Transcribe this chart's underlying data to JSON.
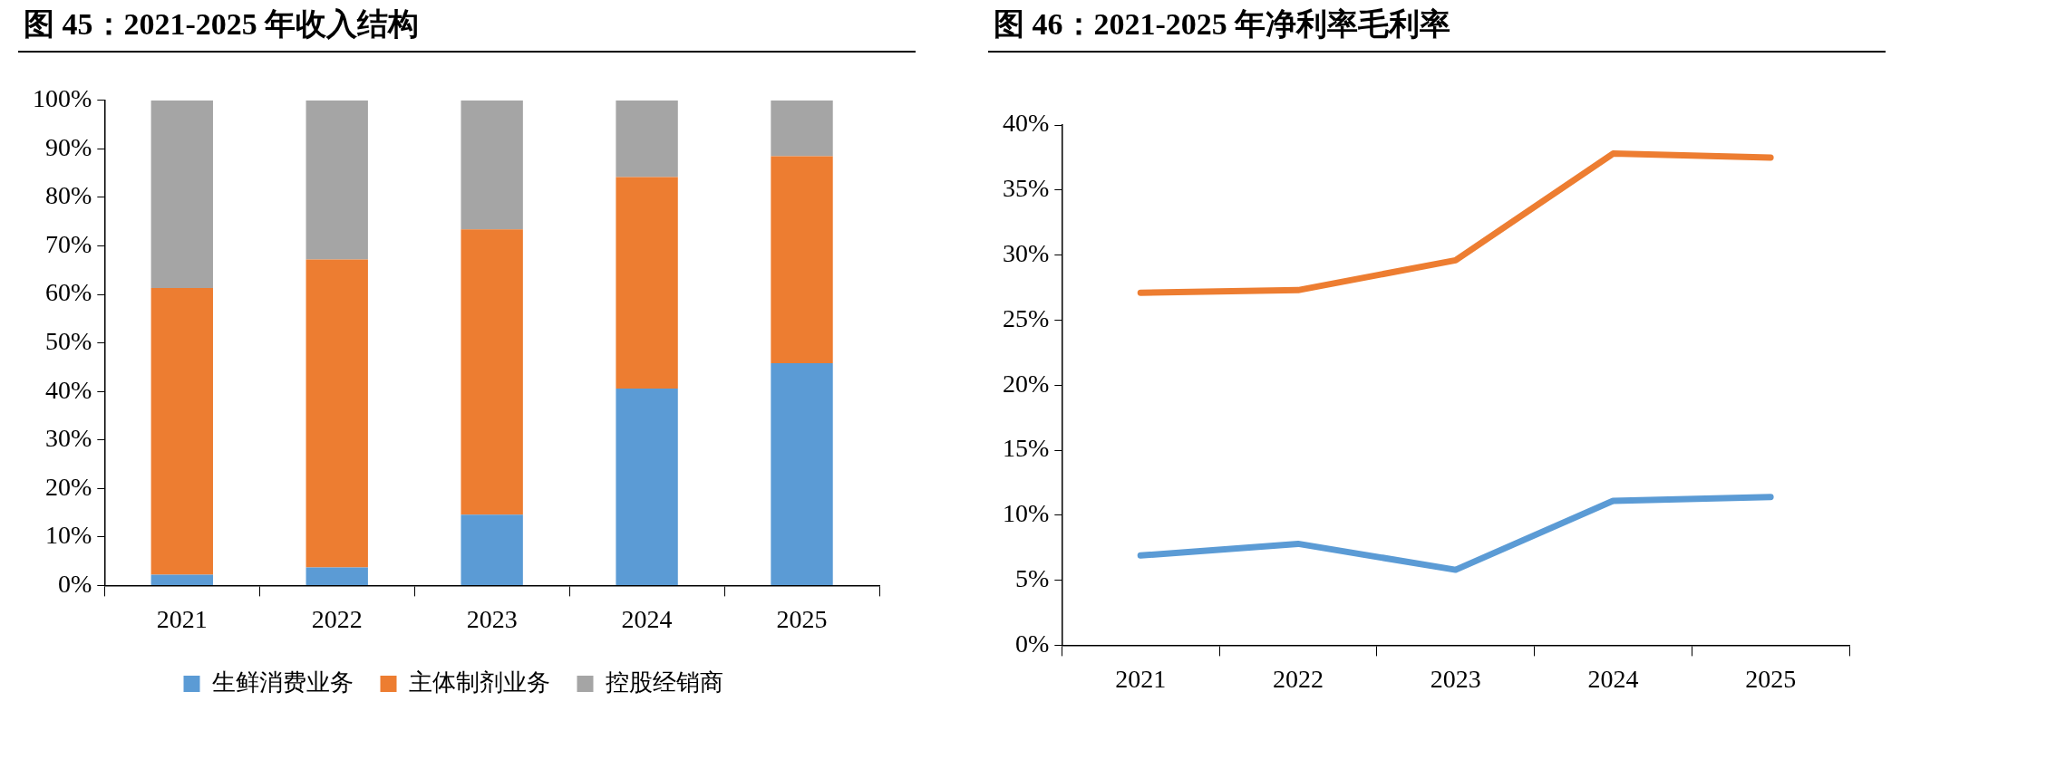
{
  "chart_data": [
    {
      "type": "bar",
      "title": "图 45：2021-2025 年收入结构",
      "categories": [
        "2021",
        "2022",
        "2023",
        "2024",
        "2025"
      ],
      "stacked": true,
      "legend": "bottom",
      "grid": false,
      "series": [
        {
          "name": "生鲜消费业务",
          "color": "#5b9bd5",
          "values": [
            2.2,
            3.7,
            14.6,
            40.6,
            45.8
          ]
        },
        {
          "name": "主体制剂业务",
          "color": "#ed7d31",
          "values": [
            59.1,
            63.5,
            58.8,
            43.6,
            42.7
          ]
        },
        {
          "name": "控股经销商",
          "color": "#a5a5a5",
          "values": [
            38.7,
            32.8,
            26.6,
            15.8,
            11.5
          ]
        }
      ],
      "ylim": [
        0,
        100
      ],
      "yticks": [
        {
          "value": 0,
          "label": "0%"
        },
        {
          "value": 10,
          "label": "10%"
        },
        {
          "value": 20,
          "label": "20%"
        },
        {
          "value": 30,
          "label": "30%"
        },
        {
          "value": 40,
          "label": "40%"
        },
        {
          "value": 50,
          "label": "50%"
        },
        {
          "value": 60,
          "label": "60%"
        },
        {
          "value": 70,
          "label": "70%"
        },
        {
          "value": 80,
          "label": "80%"
        },
        {
          "value": 90,
          "label": "90%"
        },
        {
          "value": 100,
          "label": "100%"
        }
      ]
    },
    {
      "type": "line",
      "title": "图 46：2021-2025 年净利率毛利率",
      "categories": [
        "2021",
        "2022",
        "2023",
        "2024",
        "2025"
      ],
      "legend": false,
      "grid": false,
      "marker": "none",
      "line_style": "solid",
      "series": [
        {
          "color": "#ed7d31",
          "values": [
            27.1,
            27.3,
            29.6,
            37.8,
            37.5
          ]
        },
        {
          "color": "#5b9bd5",
          "values": [
            6.9,
            7.8,
            5.8,
            11.1,
            11.4
          ]
        }
      ],
      "ylim": [
        0,
        40
      ],
      "yticks": [
        {
          "value": 0,
          "label": "0%"
        },
        {
          "value": 5,
          "label": "5%"
        },
        {
          "value": 10,
          "label": "10%"
        },
        {
          "value": 15,
          "label": "15%"
        },
        {
          "value": 20,
          "label": "20%"
        },
        {
          "value": 25,
          "label": "25%"
        },
        {
          "value": 30,
          "label": "30%"
        },
        {
          "value": 35,
          "label": "35%"
        },
        {
          "value": 40,
          "label": "40%"
        }
      ]
    }
  ]
}
